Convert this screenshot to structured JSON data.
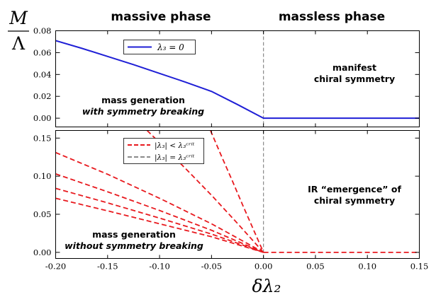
{
  "header": {
    "left_title": "massive phase",
    "right_title": "massless phase"
  },
  "y_axis_label": {
    "numerator": "M",
    "denominator": "Λ"
  },
  "x_axis_label": "δλ₂",
  "colors": {
    "blue": "#1f1fd6",
    "red": "#e8191e",
    "gray": "#8a8a8a",
    "frame": "#000000"
  },
  "chart_data": [
    {
      "type": "line",
      "panel": "top",
      "x_range": [
        -0.2,
        0.15
      ],
      "ylim": [
        -0.008,
        0.08
      ],
      "y_ticks": [
        "0.08",
        "0.06",
        "0.04",
        "0.02",
        "0.00"
      ],
      "y_tick_values": [
        0.08,
        0.06,
        0.04,
        0.02,
        0.0
      ],
      "legend": {
        "placement": "top-left",
        "entries": [
          {
            "label": "λ₃ = 0",
            "style": "solid-blue"
          }
        ]
      },
      "series": [
        {
          "name": "λ₃ = 0",
          "style": "solid-blue",
          "x": [
            -0.2,
            -0.175,
            -0.15,
            -0.125,
            -0.1,
            -0.075,
            -0.05,
            -0.025,
            0.0,
            0.15
          ],
          "y": [
            0.071,
            0.064,
            0.0565,
            0.049,
            0.041,
            0.033,
            0.0245,
            0.0125,
            0.0,
            0.0
          ]
        }
      ],
      "vline": {
        "x": 0.0,
        "style": "dashed-gray"
      },
      "annotations": {
        "left": [
          "mass generation",
          "with symmetry breaking"
        ],
        "right": [
          "manifest",
          "chiral symmetry"
        ]
      }
    },
    {
      "type": "line",
      "panel": "bottom",
      "x_range": [
        -0.2,
        0.15
      ],
      "ylim": [
        -0.008,
        0.16
      ],
      "y_ticks": [
        "0.15",
        "0.10",
        "0.05",
        "0.00"
      ],
      "y_tick_values": [
        0.15,
        0.1,
        0.05,
        0.0
      ],
      "x_ticks": [
        "-0.20",
        "-0.15",
        "-0.10",
        "-0.05",
        "0.00",
        "0.05",
        "0.10",
        "0.15"
      ],
      "x_tick_values": [
        -0.2,
        -0.15,
        -0.1,
        -0.05,
        0.0,
        0.05,
        0.1,
        0.15
      ],
      "legend": {
        "placement": "top-left",
        "entries": [
          {
            "label": "|λ₃| < λ₃ᶜʳⁱᵗ",
            "style": "dashed-red"
          },
          {
            "label": "|λ₃| = λ₃ᶜʳⁱᵗ",
            "style": "dashed-gray"
          }
        ]
      },
      "series": [
        {
          "style": "dashed-red",
          "x": [
            -0.2,
            -0.15,
            -0.1,
            -0.05,
            0.0
          ],
          "y": [
            0.071,
            0.0545,
            0.0375,
            0.0205,
            0.0
          ]
        },
        {
          "style": "dashed-red",
          "x": [
            -0.2,
            -0.15,
            -0.1,
            -0.05,
            0.0
          ],
          "y": [
            0.084,
            0.065,
            0.045,
            0.024,
            0.0
          ]
        },
        {
          "style": "dashed-red",
          "x": [
            -0.2,
            -0.15,
            -0.1,
            -0.05,
            0.0
          ],
          "y": [
            0.103,
            0.0795,
            0.055,
            0.029,
            0.0
          ]
        },
        {
          "style": "dashed-red",
          "x": [
            -0.2,
            -0.15,
            -0.1,
            -0.05,
            0.0
          ],
          "y": [
            0.131,
            0.1025,
            0.071,
            0.0375,
            0.0
          ]
        },
        {
          "style": "dashed-red",
          "x": [
            -0.112,
            -0.1,
            -0.075,
            -0.05,
            -0.025,
            0.0
          ],
          "y": [
            0.16,
            0.144,
            0.11,
            0.075,
            0.038,
            0.0
          ]
        },
        {
          "style": "dashed-red",
          "x": [
            -0.051,
            -0.04,
            -0.03,
            -0.02,
            -0.01,
            0.0
          ],
          "y": [
            0.16,
            0.125,
            0.094,
            0.062,
            0.031,
            0.0
          ]
        },
        {
          "style": "dashed-red",
          "x": [
            0.0,
            0.15
          ],
          "y": [
            0.0,
            0.0
          ]
        }
      ],
      "vline": {
        "x": 0.0,
        "style": "dashed-gray"
      },
      "annotations": {
        "left": [
          "mass generation",
          "without symmetry breaking"
        ],
        "right": [
          "IR “emergence” of",
          "chiral symmetry"
        ]
      }
    }
  ]
}
